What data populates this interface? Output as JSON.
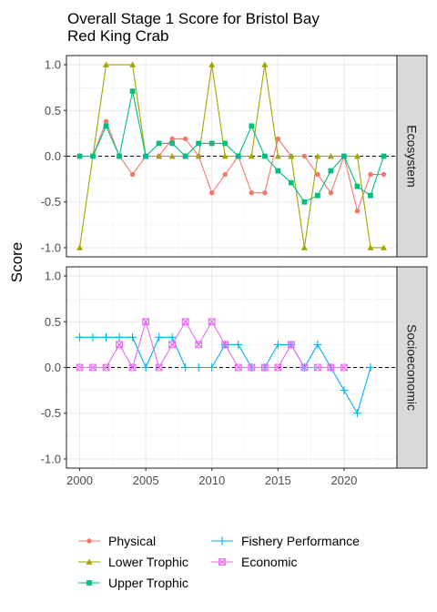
{
  "chart_data": {
    "type": "line",
    "title_lines": [
      "Overall Stage 1 Score for Bristol Bay",
      "Red King Crab"
    ],
    "xlabel": "",
    "ylabel": "Score",
    "xlim": [
      1999,
      2024
    ],
    "ylim": [
      -1.1,
      1.1
    ],
    "x_ticks": [
      2000,
      2005,
      2010,
      2015,
      2020
    ],
    "y_ticks": [
      -1.0,
      -0.5,
      0.0,
      0.5,
      1.0
    ],
    "y_tick_labels": [
      "-1.0",
      "-0.5",
      "0.0",
      "0.5",
      "1.0"
    ],
    "reference_line": 0,
    "grid": true,
    "legend_position": "bottom",
    "panels": [
      {
        "label": "Ecosystem",
        "series": [
          {
            "name": "Physical",
            "color": "#F8766D",
            "marker": "circle",
            "x": [
              2000,
              2001,
              2002,
              2003,
              2004,
              2005,
              2006,
              2007,
              2008,
              2009,
              2010,
              2011,
              2012,
              2013,
              2014,
              2015,
              2016,
              2017,
              2018,
              2019,
              2020,
              2021,
              2022,
              2023
            ],
            "y": [
              0,
              0,
              0.38,
              0,
              -0.2,
              0,
              0,
              0.19,
              0.19,
              0,
              -0.4,
              -0.2,
              0,
              -0.4,
              -0.4,
              0.19,
              0,
              0,
              -0.2,
              -0.4,
              0,
              -0.6,
              -0.2,
              -0.2
            ]
          },
          {
            "name": "Lower Trophic",
            "color": "#A3A500",
            "marker": "triangle",
            "x": [
              2000,
              2002,
              2004,
              2005,
              2006,
              2007,
              2008,
              2009,
              2010,
              2011,
              2012,
              2013,
              2014,
              2015,
              2016,
              2017,
              2018,
              2019,
              2020,
              2021,
              2022,
              2023
            ],
            "y": [
              -1,
              1,
              1,
              0,
              0,
              0,
              0,
              0,
              1,
              0,
              0,
              0,
              1,
              0,
              0,
              -1,
              0,
              0,
              0,
              0,
              -1,
              -1
            ]
          },
          {
            "name": "Upper Trophic",
            "color": "#00BF7D",
            "marker": "square",
            "x": [
              2000,
              2001,
              2002,
              2003,
              2004,
              2005,
              2006,
              2007,
              2008,
              2009,
              2010,
              2011,
              2012,
              2013,
              2014,
              2015,
              2016,
              2017,
              2018,
              2019,
              2020,
              2021,
              2022,
              2023
            ],
            "y": [
              0,
              0,
              0.33,
              0,
              0.71,
              0,
              0.14,
              0.14,
              0,
              0.14,
              0.14,
              0.14,
              0,
              0.33,
              0,
              -0.16,
              -0.29,
              -0.5,
              -0.43,
              -0.16,
              0,
              -0.33,
              -0.43,
              0
            ]
          }
        ]
      },
      {
        "label": "Socioeconomic",
        "series": [
          {
            "name": "Fishery Performance",
            "color": "#00B0F6",
            "marker": "plus",
            "x": [
              2000,
              2001,
              2002,
              2003,
              2004,
              2005,
              2006,
              2007,
              2008,
              2009,
              2010,
              2011,
              2012,
              2013,
              2014,
              2015,
              2016,
              2017,
              2018,
              2019,
              2020,
              2021,
              2022
            ],
            "y": [
              0.33,
              0.33,
              0.33,
              0.33,
              0.33,
              0,
              0.33,
              0.33,
              0,
              0,
              0,
              0.25,
              0.25,
              0,
              0,
              0.25,
              0.25,
              0,
              0.25,
              0,
              -0.25,
              -0.5,
              0
            ]
          },
          {
            "name": "Economic",
            "color": "#E76BF3",
            "marker": "boxx",
            "x": [
              2000,
              2001,
              2002,
              2003,
              2004,
              2005,
              2006,
              2007,
              2008,
              2009,
              2010,
              2011,
              2012,
              2013,
              2014,
              2015,
              2016,
              2017,
              2018,
              2019,
              2020
            ],
            "y": [
              0,
              0,
              0,
              0.25,
              0,
              0.5,
              0,
              0.25,
              0.5,
              0.25,
              0.5,
              0.25,
              0,
              0,
              0,
              0,
              0.25,
              0,
              0,
              0,
              0
            ]
          }
        ]
      }
    ],
    "legend": [
      {
        "name": "Physical",
        "color": "#F8766D",
        "marker": "circle"
      },
      {
        "name": "Lower Trophic",
        "color": "#A3A500",
        "marker": "triangle"
      },
      {
        "name": "Upper Trophic",
        "color": "#00BF7D",
        "marker": "square"
      },
      {
        "name": "Fishery Performance",
        "color": "#00B0F6",
        "marker": "plus"
      },
      {
        "name": "Economic",
        "color": "#E76BF3",
        "marker": "boxx"
      }
    ]
  }
}
